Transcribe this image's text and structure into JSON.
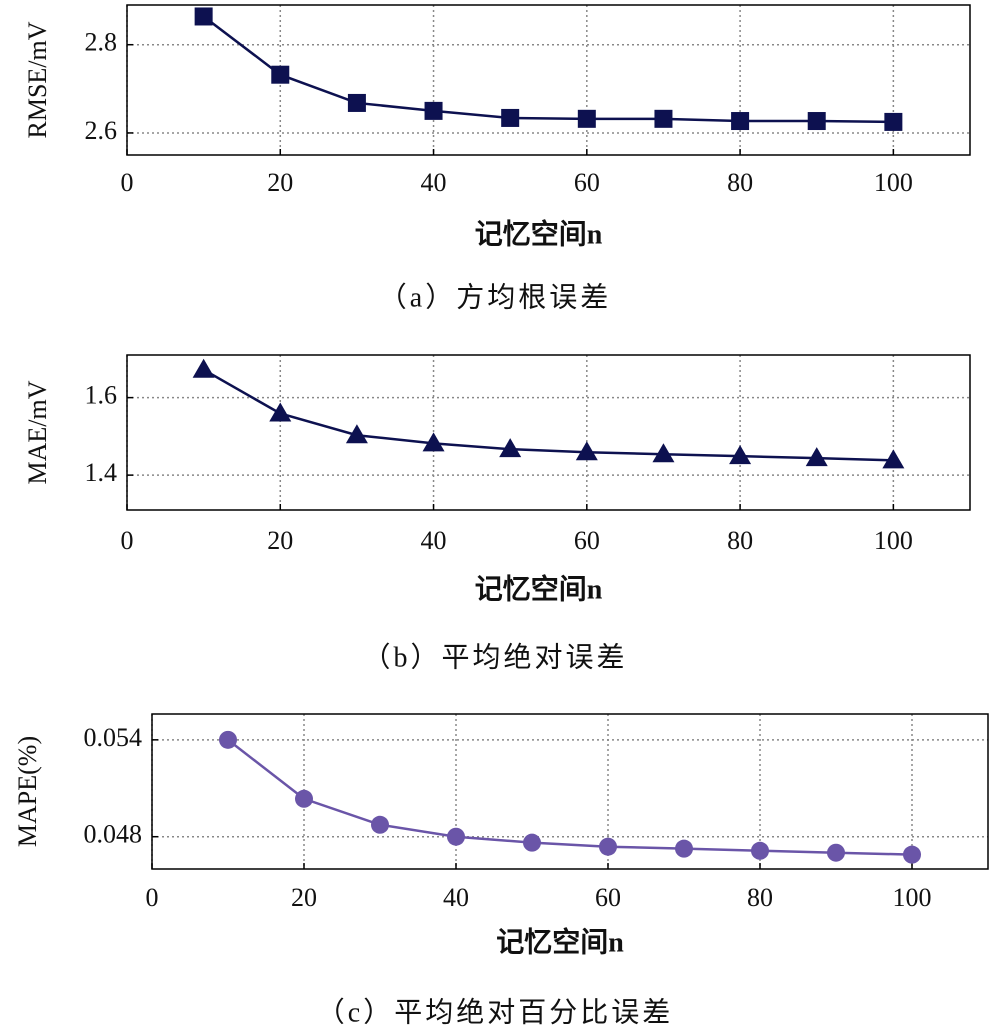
{
  "chart_data": [
    {
      "type": "line",
      "x": [
        10,
        20,
        30,
        40,
        50,
        60,
        70,
        80,
        90,
        100
      ],
      "values": [
        2.864,
        2.732,
        2.668,
        2.65,
        2.634,
        2.632,
        2.632,
        2.627,
        2.627,
        2.625
      ],
      "color": "#0d1150",
      "marker": "square",
      "xlabel": "记忆空间n",
      "ylabel": "RMSE/mV",
      "caption": "（a）方均根误差",
      "xlim": [
        0,
        110
      ],
      "ylim": [
        2.55,
        2.89
      ],
      "xticks": [
        0,
        20,
        40,
        60,
        80,
        100
      ],
      "yticks": [
        2.6,
        2.8
      ],
      "grid": true
    },
    {
      "type": "line",
      "x": [
        10,
        20,
        30,
        40,
        50,
        60,
        70,
        80,
        90,
        100
      ],
      "values": [
        1.672,
        1.559,
        1.503,
        1.482,
        1.467,
        1.459,
        1.454,
        1.449,
        1.444,
        1.438
      ],
      "color": "#0d1150",
      "marker": "triangle",
      "xlabel": "记忆空间n",
      "ylabel": "MAE/mV",
      "caption": "（b）平均绝对误差",
      "xlim": [
        0,
        110
      ],
      "ylim": [
        1.31,
        1.71
      ],
      "xticks": [
        0,
        20,
        40,
        60,
        80,
        100
      ],
      "yticks": [
        1.4,
        1.6
      ],
      "grid": true
    },
    {
      "type": "line",
      "x": [
        10,
        20,
        30,
        40,
        50,
        60,
        70,
        80,
        90,
        100
      ],
      "values": [
        0.054,
        0.05035,
        0.04874,
        0.048,
        0.04763,
        0.04738,
        0.04726,
        0.04713,
        0.04701,
        0.04689
      ],
      "color": "#6a55a8",
      "marker": "circle",
      "xlabel": "记忆空间n",
      "ylabel": "MAPE(%)",
      "caption": "（c）平均绝对百分比误差",
      "xlim": [
        0,
        110
      ],
      "ylim": [
        0.046,
        0.0556
      ],
      "xticks": [
        0,
        20,
        40,
        60,
        80,
        100
      ],
      "yticks": [
        0.048,
        0.054
      ],
      "grid": true
    }
  ]
}
